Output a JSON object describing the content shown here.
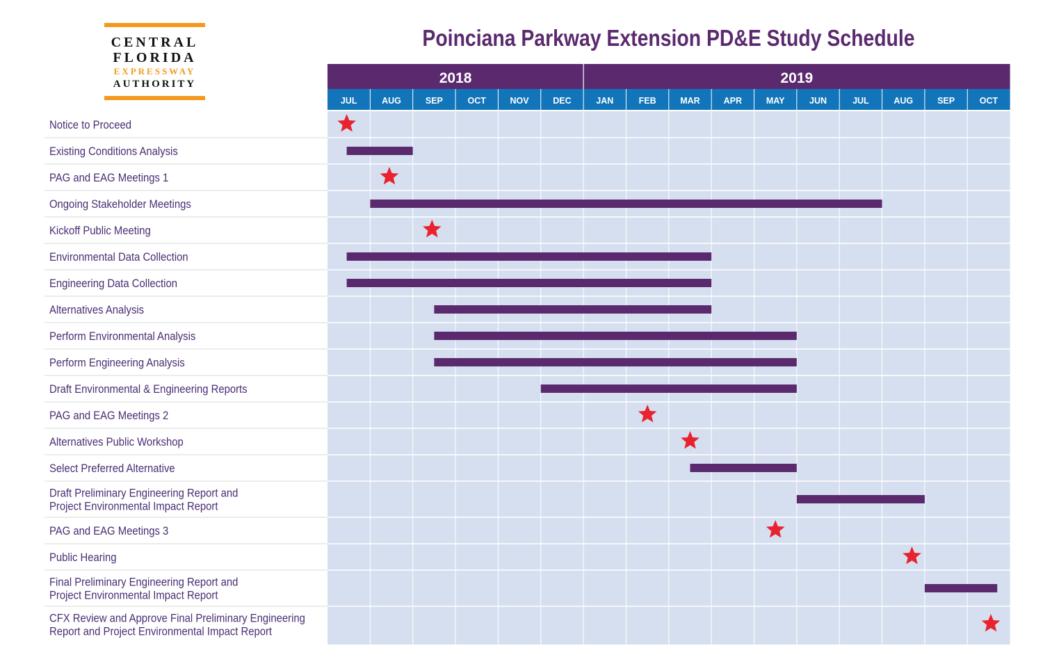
{
  "logo": {
    "line1": "CENTRAL",
    "line2": "FLORIDA",
    "line3": "EXPRESSWAY",
    "line4": "AUTHORITY",
    "accent_color": "#f39a1e"
  },
  "colors": {
    "title": "#5b2a6e",
    "year_header": "#5b2a6e",
    "month_header": "#1275b9",
    "grid_background": "#d6dff0",
    "bar": "#5b2a6e",
    "milestone": "#e8222e",
    "label_text": "#4a2d73"
  },
  "chart_data": {
    "type": "gantt",
    "title": "Poinciana Parkway Extension PD&E Study Schedule",
    "years": [
      {
        "label": "2018",
        "months": 6
      },
      {
        "label": "2019",
        "months": 10
      }
    ],
    "months": [
      "JUL",
      "AUG",
      "SEP",
      "OCT",
      "NOV",
      "DEC",
      "JAN",
      "FEB",
      "MAR",
      "APR",
      "MAY",
      "JUN",
      "JUL",
      "AUG",
      "SEP",
      "OCT"
    ],
    "time_unit": "months from start of Jul 2018",
    "tasks": [
      {
        "name": [
          "Notice to Proceed"
        ],
        "milestone": 0.45
      },
      {
        "name": [
          "Existing Conditions Analysis"
        ],
        "start": 0.45,
        "end": 2.0
      },
      {
        "name": [
          "PAG and EAG Meetings 1"
        ],
        "milestone": 1.45
      },
      {
        "name": [
          "Ongoing Stakeholder Meetings"
        ],
        "start": 1.0,
        "end": 13.0
      },
      {
        "name": [
          "Kickoff Public Meeting"
        ],
        "milestone": 2.45
      },
      {
        "name": [
          "Environmental Data Collection"
        ],
        "start": 0.45,
        "end": 9.0
      },
      {
        "name": [
          "Engineering Data Collection"
        ],
        "start": 0.45,
        "end": 9.0
      },
      {
        "name": [
          "Alternatives Analysis"
        ],
        "start": 2.5,
        "end": 9.0
      },
      {
        "name": [
          "Perform Environmental Analysis"
        ],
        "start": 2.5,
        "end": 11.0
      },
      {
        "name": [
          "Perform Engineering Analysis"
        ],
        "start": 2.5,
        "end": 11.0
      },
      {
        "name": [
          "Draft Environmental & Engineering Reports"
        ],
        "start": 5.0,
        "end": 11.0
      },
      {
        "name": [
          "PAG and EAG Meetings 2"
        ],
        "milestone": 7.5
      },
      {
        "name": [
          "Alternatives Public Workshop"
        ],
        "milestone": 8.5
      },
      {
        "name": [
          "Select Preferred Alternative"
        ],
        "start": 8.5,
        "end": 11.0
      },
      {
        "name": [
          "Draft Preliminary Engineering Report and",
          "Project Environmental Impact Report"
        ],
        "start": 11.0,
        "end": 14.0
      },
      {
        "name": [
          "PAG and EAG Meetings 3"
        ],
        "milestone": 10.5
      },
      {
        "name": [
          "Public Hearing"
        ],
        "milestone": 13.7
      },
      {
        "name": [
          "Final Preliminary Engineering Report and",
          "Project Environmental Impact Report"
        ],
        "start": 14.0,
        "end": 15.7
      },
      {
        "name": [
          "CFX Review and Approve Final Preliminary Engineering",
          "Report and Project Environmental Impact Report"
        ],
        "milestone": 15.55
      }
    ]
  }
}
